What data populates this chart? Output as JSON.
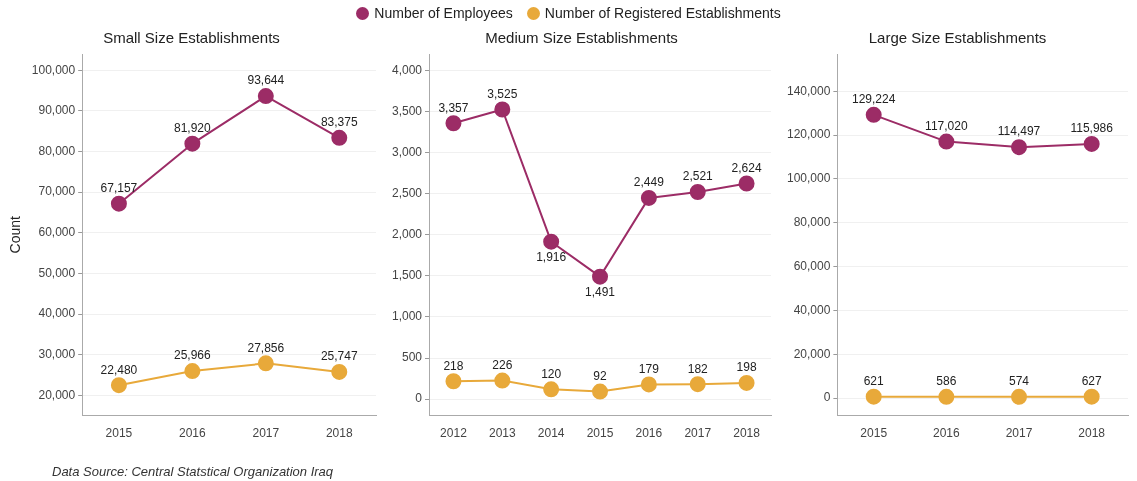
{
  "chart_data": [
    {
      "type": "line",
      "title": "Small Size Establishments",
      "ylabel": "Count",
      "categories": [
        "2015",
        "2016",
        "2017",
        "2018"
      ],
      "series": [
        {
          "name": "Number of Employees",
          "color": "#9c2c66",
          "values": [
            67157,
            81920,
            93644,
            83375
          ],
          "value_labels": [
            "67,157",
            "81,920",
            "93,644",
            "83,375"
          ]
        },
        {
          "name": "Number of Registered Establishments",
          "color": "#e8a93a",
          "values": [
            22480,
            25966,
            27856,
            25747
          ],
          "value_labels": [
            "22,480",
            "25,966",
            "27,856",
            "25,747"
          ]
        }
      ],
      "ylim": [
        15000,
        104000
      ],
      "yticks": [
        {
          "value": 20000,
          "label": "20,000"
        },
        {
          "value": 30000,
          "label": "30,000"
        },
        {
          "value": 40000,
          "label": "40,000"
        },
        {
          "value": 50000,
          "label": "50,000"
        },
        {
          "value": 60000,
          "label": "60,000"
        },
        {
          "value": 70000,
          "label": "70,000"
        },
        {
          "value": 80000,
          "label": "80,000"
        },
        {
          "value": 90000,
          "label": "90,000"
        },
        {
          "value": 100000,
          "label": "100,000"
        }
      ],
      "grid": "y",
      "legend": "top",
      "marker": "circle",
      "annotations": [
        "Data Source: Central Statstical Organization Iraq"
      ]
    },
    {
      "type": "line",
      "title": "Medium Size Establishments",
      "categories": [
        "2012",
        "2013",
        "2014",
        "2015",
        "2016",
        "2017",
        "2018"
      ],
      "series": [
        {
          "color": "#9c2c66",
          "values": [
            3357,
            3525,
            1916,
            1491,
            2449,
            2521,
            2624
          ],
          "value_labels": [
            "3,357",
            "3,525",
            "1,916",
            "1,491",
            "2,449",
            "2,521",
            "2,624"
          ]
        },
        {
          "color": "#e8a93a",
          "values": [
            218,
            226,
            120,
            92,
            179,
            182,
            198
          ],
          "value_labels": [
            "218",
            "226",
            "120",
            "92",
            "179",
            "182",
            "198"
          ]
        }
      ],
      "ylim": [
        -200,
        4200
      ],
      "yticks": [
        {
          "value": 0,
          "label": "0"
        },
        {
          "value": 500,
          "label": "500"
        },
        {
          "value": 1000,
          "label": "1,000"
        },
        {
          "value": 1500,
          "label": "1,500"
        },
        {
          "value": 2000,
          "label": "2,000"
        },
        {
          "value": 2500,
          "label": "2,500"
        },
        {
          "value": 3000,
          "label": "3,000"
        },
        {
          "value": 3500,
          "label": "3,500"
        },
        {
          "value": 4000,
          "label": "4,000"
        }
      ],
      "grid": "y",
      "marker": "circle"
    },
    {
      "type": "line",
      "title": "Large Size Establishments",
      "categories": [
        "2015",
        "2016",
        "2017",
        "2018"
      ],
      "series": [
        {
          "color": "#9c2c66",
          "values": [
            129224,
            117020,
            114497,
            115986
          ],
          "value_labels": [
            "129,224",
            "117,020",
            "114,497",
            "115,986"
          ]
        },
        {
          "color": "#e8a93a",
          "values": [
            621,
            586,
            574,
            627
          ],
          "value_labels": [
            "621",
            "586",
            "574",
            "627"
          ]
        }
      ],
      "ylim": [
        -8000,
        157000
      ],
      "yticks": [
        {
          "value": 0,
          "label": "0"
        },
        {
          "value": 20000,
          "label": "20,000"
        },
        {
          "value": 40000,
          "label": "40,000"
        },
        {
          "value": 60000,
          "label": "60,000"
        },
        {
          "value": 80000,
          "label": "80,000"
        },
        {
          "value": 100000,
          "label": "100,000"
        },
        {
          "value": 120000,
          "label": "120,000"
        },
        {
          "value": 140000,
          "label": "140,000"
        }
      ],
      "grid": "y",
      "marker": "circle"
    }
  ]
}
